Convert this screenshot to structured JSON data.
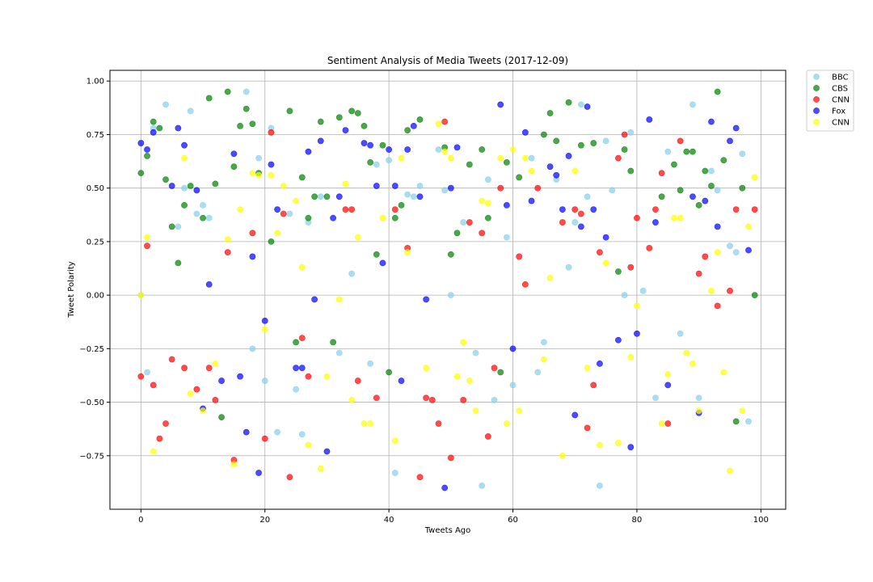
{
  "chart_data": {
    "type": "scatter",
    "title": "Sentiment Analysis of Media Tweets (2017-12-09)",
    "xlabel": "Tweets Ago",
    "ylabel": "Tweet Polarity",
    "xlim": [
      -5,
      104
    ],
    "ylim": [
      -1.0,
      1.05
    ],
    "xticks": [
      0,
      20,
      40,
      60,
      80,
      100
    ],
    "yticks": [
      -0.75,
      -0.5,
      -0.25,
      0.0,
      0.25,
      0.5,
      0.75,
      1.0
    ],
    "xtick_labels": [
      "0",
      "20",
      "40",
      "60",
      "80",
      "100"
    ],
    "ytick_labels": [
      "−0.75",
      "−0.50",
      "−0.25",
      "0.00",
      "0.25",
      "0.50",
      "0.75",
      "1.00"
    ],
    "grid": true,
    "legend_position": "outside-top-right",
    "series": [
      {
        "name": "BBC",
        "color": "#87ceeb",
        "x": [
          0,
          1,
          2,
          4,
          6,
          7,
          8,
          9,
          10,
          11,
          17,
          18,
          19,
          20,
          21,
          22,
          24,
          25,
          26,
          27,
          29,
          32,
          34,
          37,
          38,
          40,
          41,
          43,
          44,
          45,
          48,
          49,
          50,
          52,
          54,
          55,
          56,
          57,
          59,
          60,
          63,
          64,
          65,
          67,
          69,
          70,
          71,
          72,
          74,
          75,
          76,
          78,
          79,
          81,
          83,
          85,
          87,
          89,
          90,
          92,
          93,
          95,
          96,
          97,
          98
        ],
        "y": [
          0.0,
          -0.36,
          0.78,
          0.89,
          0.32,
          0.5,
          0.86,
          0.38,
          0.42,
          0.36,
          0.95,
          -0.25,
          0.64,
          -0.4,
          0.78,
          -0.64,
          0.38,
          -0.44,
          -0.65,
          0.34,
          0.46,
          -0.27,
          0.1,
          -0.32,
          0.61,
          0.63,
          -0.83,
          0.47,
          0.46,
          0.51,
          0.68,
          0.49,
          0.0,
          0.34,
          -0.27,
          -0.89,
          0.54,
          -0.49,
          0.27,
          -0.42,
          0.64,
          -0.36,
          -0.22,
          0.54,
          0.13,
          0.34,
          0.89,
          0.46,
          -0.89,
          0.72,
          0.49,
          0.0,
          0.76,
          0.02,
          -0.48,
          0.67,
          -0.18,
          0.89,
          -0.48,
          0.58,
          0.49,
          0.23,
          0.2,
          0.66,
          -0.59
        ]
      },
      {
        "name": "CBS",
        "color": "#008000",
        "x": [
          0,
          1,
          2,
          3,
          4,
          5,
          6,
          7,
          8,
          10,
          11,
          12,
          13,
          14,
          15,
          16,
          17,
          18,
          19,
          21,
          24,
          25,
          26,
          27,
          28,
          29,
          30,
          31,
          32,
          34,
          35,
          36,
          37,
          38,
          39,
          40,
          41,
          42,
          43,
          45,
          49,
          50,
          51,
          53,
          55,
          56,
          58,
          59,
          61,
          65,
          66,
          67,
          69,
          71,
          73,
          77,
          78,
          79,
          84,
          86,
          87,
          88,
          89,
          90,
          91,
          92,
          93,
          94,
          96,
          97,
          99
        ],
        "y": [
          0.57,
          0.65,
          0.81,
          0.78,
          0.54,
          0.32,
          0.15,
          0.42,
          0.51,
          0.36,
          0.92,
          0.52,
          -0.57,
          0.95,
          0.6,
          0.79,
          0.87,
          0.8,
          0.57,
          0.25,
          0.86,
          -0.22,
          0.55,
          0.36,
          0.46,
          0.81,
          0.46,
          -0.22,
          0.83,
          0.86,
          0.85,
          0.79,
          0.62,
          0.19,
          0.7,
          -0.36,
          0.36,
          0.42,
          0.77,
          0.82,
          0.69,
          0.19,
          0.29,
          0.61,
          0.68,
          0.36,
          -0.36,
          0.62,
          0.55,
          0.75,
          0.85,
          0.72,
          0.9,
          0.7,
          0.71,
          0.11,
          0.68,
          0.58,
          0.46,
          0.61,
          0.49,
          0.67,
          0.67,
          0.42,
          0.58,
          0.51,
          0.95,
          0.63,
          -0.59,
          0.5,
          0.0
        ]
      },
      {
        "name": "CNN",
        "color": "#ff0000",
        "x": [
          0,
          1,
          2,
          3,
          4,
          5,
          7,
          9,
          11,
          12,
          14,
          15,
          18,
          20,
          21,
          23,
          24,
          26,
          27,
          33,
          34,
          35,
          38,
          41,
          43,
          45,
          46,
          47,
          48,
          49,
          50,
          52,
          53,
          55,
          56,
          57,
          58,
          61,
          62,
          64,
          68,
          70,
          71,
          72,
          73,
          74,
          77,
          78,
          79,
          80,
          82,
          83,
          84,
          85,
          87,
          90,
          91,
          93,
          95,
          96,
          99
        ],
        "y": [
          -0.38,
          0.23,
          -0.42,
          -0.67,
          -0.6,
          -0.3,
          -0.34,
          -0.44,
          -0.34,
          -0.49,
          0.2,
          -0.77,
          0.29,
          -0.67,
          0.76,
          0.38,
          -0.85,
          -0.2,
          -0.38,
          0.4,
          0.4,
          -0.4,
          -0.48,
          0.4,
          0.22,
          -0.85,
          -0.48,
          -0.49,
          -0.6,
          0.81,
          -0.76,
          -0.49,
          0.34,
          0.29,
          -0.66,
          -0.34,
          0.5,
          0.18,
          0.05,
          0.5,
          0.34,
          0.4,
          0.38,
          -0.62,
          -0.42,
          0.2,
          0.64,
          0.75,
          0.13,
          0.36,
          0.22,
          0.4,
          0.57,
          -0.6,
          0.72,
          0.1,
          0.18,
          -0.05,
          0.02,
          0.4,
          0.4
        ]
      },
      {
        "name": "Fox",
        "color": "#0000ff",
        "x": [
          0,
          1,
          2,
          5,
          6,
          7,
          9,
          10,
          11,
          13,
          15,
          16,
          17,
          18,
          19,
          20,
          21,
          22,
          25,
          26,
          27,
          28,
          29,
          30,
          31,
          32,
          33,
          36,
          37,
          38,
          39,
          40,
          41,
          42,
          43,
          44,
          45,
          46,
          49,
          50,
          51,
          58,
          59,
          60,
          62,
          63,
          66,
          67,
          68,
          69,
          70,
          71,
          72,
          73,
          74,
          75,
          77,
          79,
          80,
          82,
          83,
          85,
          89,
          90,
          91,
          92,
          93,
          95,
          96,
          98
        ],
        "y": [
          0.71,
          0.68,
          0.76,
          0.51,
          0.78,
          0.7,
          0.49,
          -0.53,
          0.05,
          -0.4,
          0.66,
          -0.38,
          -0.64,
          0.18,
          -0.83,
          -0.12,
          0.61,
          0.4,
          -0.34,
          -0.34,
          0.67,
          -0.02,
          0.72,
          -0.73,
          0.36,
          0.46,
          0.77,
          0.71,
          0.7,
          0.51,
          0.15,
          0.68,
          0.51,
          -0.4,
          0.68,
          0.79,
          0.46,
          -0.02,
          -0.9,
          0.5,
          0.69,
          0.89,
          0.42,
          -0.25,
          0.76,
          0.44,
          0.6,
          0.56,
          0.4,
          0.65,
          -0.56,
          0.32,
          0.88,
          0.4,
          -0.32,
          0.27,
          -0.21,
          -0.71,
          -0.18,
          0.82,
          0.34,
          -0.42,
          0.46,
          -0.55,
          0.44,
          0.81,
          0.32,
          0.72,
          0.78,
          0.21
        ]
      },
      {
        "name": "CNN",
        "color": "#ffff00",
        "x": [
          0,
          1,
          2,
          7,
          8,
          10,
          12,
          14,
          15,
          16,
          18,
          19,
          20,
          21,
          22,
          23,
          25,
          26,
          27,
          29,
          30,
          32,
          33,
          34,
          35,
          36,
          37,
          39,
          41,
          42,
          43,
          46,
          48,
          49,
          50,
          51,
          52,
          53,
          54,
          55,
          56,
          58,
          59,
          60,
          61,
          62,
          63,
          65,
          66,
          68,
          70,
          72,
          74,
          75,
          77,
          79,
          80,
          84,
          85,
          86,
          87,
          88,
          89,
          90,
          92,
          93,
          94,
          95,
          97,
          98,
          99
        ],
        "y": [
          0.0,
          0.27,
          -0.73,
          0.64,
          -0.46,
          -0.54,
          -0.32,
          0.26,
          -0.79,
          0.4,
          0.57,
          0.56,
          -0.16,
          0.56,
          0.29,
          0.51,
          0.44,
          0.13,
          -0.7,
          -0.81,
          -0.38,
          -0.02,
          0.52,
          -0.49,
          0.27,
          -0.6,
          -0.6,
          0.36,
          -0.68,
          0.64,
          0.2,
          -0.34,
          0.8,
          0.67,
          0.64,
          -0.38,
          -0.22,
          -0.4,
          -0.54,
          0.44,
          0.43,
          0.64,
          -0.6,
          0.68,
          -0.54,
          0.64,
          0.58,
          -0.3,
          0.08,
          -0.75,
          0.58,
          -0.34,
          -0.7,
          0.15,
          -0.69,
          -0.29,
          -0.05,
          -0.6,
          -0.37,
          0.36,
          0.36,
          -0.27,
          -0.32,
          -0.54,
          0.02,
          0.2,
          -0.36,
          -0.82,
          -0.54,
          0.32,
          0.55
        ]
      }
    ]
  }
}
